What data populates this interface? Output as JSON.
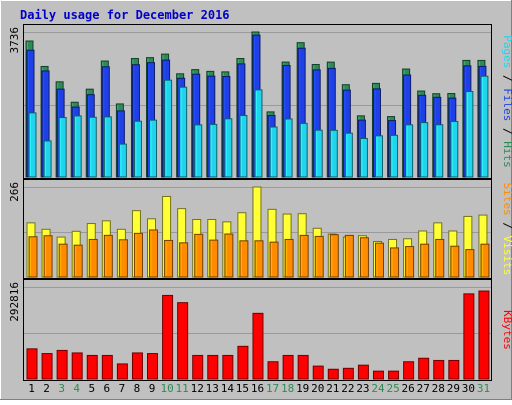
{
  "chart_data": {
    "type": "bar",
    "title": "Daily usage for December 2016",
    "categories": [
      "1",
      "2",
      "3",
      "4",
      "5",
      "6",
      "7",
      "8",
      "9",
      "10",
      "11",
      "12",
      "13",
      "14",
      "15",
      "16",
      "17",
      "18",
      "19",
      "20",
      "21",
      "22",
      "23",
      "24",
      "25",
      "26",
      "27",
      "28",
      "29",
      "30",
      "31"
    ],
    "weekend_days": [
      "3",
      "4",
      "10",
      "11",
      "17",
      "18",
      "24",
      "25",
      "31"
    ],
    "panels": [
      {
        "id": "hits",
        "ymax_label": "3736",
        "ylim": [
          0,
          3736
        ],
        "legend": [
          "Pages",
          "Files",
          "Hits"
        ],
        "separator": "/",
        "series": [
          {
            "name": "Hits",
            "color": "#2e8b57",
            "values": [
              3504,
              2848,
              2453,
              1926,
              2263,
              2988,
              1883,
              3053,
              3076,
              3166,
              2659,
              2767,
              2722,
              2709,
              3053,
              3736,
              1678,
              2961,
              3461,
              2899,
              2960,
              2378,
              1576,
              2412,
              1557,
              2782,
              2215,
              2146,
              2151,
              3004,
              3004
            ]
          },
          {
            "name": "Files",
            "color": "#1e40e6",
            "values": [
              3266,
              2732,
              2264,
              1803,
              2121,
              2840,
              1704,
              2893,
              2947,
              3012,
              2543,
              2649,
              2599,
              2589,
              2914,
              3654,
              1585,
              2874,
              3318,
              2760,
              2798,
              2238,
              1465,
              2271,
              1454,
              2628,
              2104,
              2053,
              2032,
              2864,
              2850
            ]
          },
          {
            "name": "Pages",
            "color": "#22d3ee",
            "values": [
              1652,
              929,
              1532,
              1574,
              1539,
              1549,
              848,
              1437,
              1465,
              2495,
              2314,
              1343,
              1355,
              1500,
              1585,
              2245,
              1288,
              1495,
              1381,
              1206,
              1203,
              1129,
              992,
              1061,
              1073,
              1345,
              1402,
              1346,
              1431,
              2203,
              2596
            ]
          }
        ]
      },
      {
        "id": "visits",
        "ymax_label": "266",
        "ylim": [
          0,
          266
        ],
        "legend": [
          "Sites",
          "Visits"
        ],
        "separator": "/",
        "series": [
          {
            "name": "Visits",
            "color": "#ffff33",
            "values": [
              160,
              141,
              118,
              135,
              158,
              166,
              141,
              196,
              172,
              238,
              202,
              170,
              170,
              163,
              190,
              266,
              200,
              186,
              187,
              144,
              127,
              118,
              122,
              105,
              111,
              113,
              136,
              160,
              136,
              179,
              183
            ]
          },
          {
            "name": "Sites",
            "color": "#ff8c00",
            "values": [
              119,
              122,
              97,
              94,
              111,
              123,
              110,
              129,
              139,
              108,
              101,
              126,
              109,
              127,
              107,
              107,
              103,
              111,
              123,
              120,
              125,
              123,
              116,
              100,
              86,
              90,
              97,
              111,
              91,
              81,
              97
            ]
          }
        ]
      },
      {
        "id": "kbytes",
        "ymax_label": "292816",
        "ylim": [
          0,
          292816
        ],
        "legend": [
          "KBytes"
        ],
        "separator": "",
        "series": [
          {
            "name": "KBytes",
            "color": "#ff0000",
            "values": [
              96000,
              81000,
              91000,
              83000,
              75000,
              75000,
              48000,
              83000,
              81000,
              266000,
              243000,
              75000,
              75000,
              75000,
              104000,
              209000,
              55000,
              75000,
              75000,
              41000,
              31000,
              34000,
              44000,
              25000,
              25000,
              55000,
              66000,
              59000,
              59000,
              271000,
              280000
            ]
          }
        ]
      }
    ]
  }
}
